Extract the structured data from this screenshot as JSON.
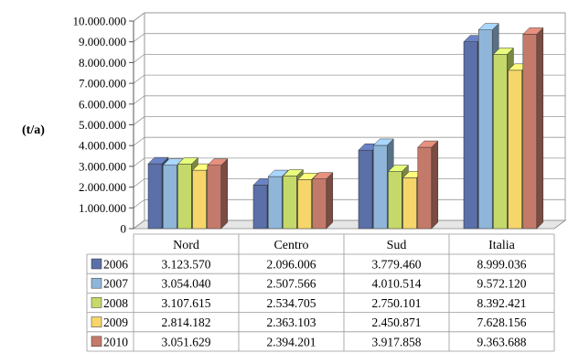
{
  "chart_data": {
    "type": "bar",
    "style": "3d-clustered-column-with-data-table",
    "ylabel": "(t/a)",
    "ylim": [
      0,
      10000000
    ],
    "y_ticks": [
      "0",
      "1.000.000",
      "2.000.000",
      "3.000.000",
      "4.000.000",
      "5.000.000",
      "6.000.000",
      "7.000.000",
      "8.000.000",
      "9.000.000",
      "10.000.000"
    ],
    "categories": [
      "Nord",
      "Centro",
      "Sud",
      "Italia"
    ],
    "series": [
      {
        "name": "2006",
        "color": "#5b6fa8",
        "values": [
          3123570,
          2096006,
          3779460,
          8999036
        ],
        "labels": [
          "3.123.570",
          "2.096.006",
          "3.779.460",
          "8.999.036"
        ]
      },
      {
        "name": "2007",
        "color": "#8fb6d8",
        "values": [
          3054040,
          2507566,
          4010514,
          9572120
        ],
        "labels": [
          "3.054.040",
          "2.507.566",
          "4.010.514",
          "9.572.120"
        ]
      },
      {
        "name": "2008",
        "color": "#c5d96a",
        "values": [
          3107615,
          2534705,
          2750101,
          8392421
        ],
        "labels": [
          "3.107.615",
          "2.534.705",
          "2.750.101",
          "8.392.421"
        ]
      },
      {
        "name": "2009",
        "color": "#f6d66b",
        "values": [
          2814182,
          2363103,
          2450871,
          7628156
        ],
        "labels": [
          "2.814.182",
          "2.363.103",
          "2.450.871",
          "7.628.156"
        ]
      },
      {
        "name": "2010",
        "color": "#c47a6a",
        "values": [
          3051629,
          2394201,
          3917858,
          9363688
        ],
        "labels": [
          "3.051.629",
          "2.394.201",
          "3.917.858",
          "9.363.688"
        ]
      }
    ],
    "grid": true,
    "legend": "data-table-left"
  }
}
